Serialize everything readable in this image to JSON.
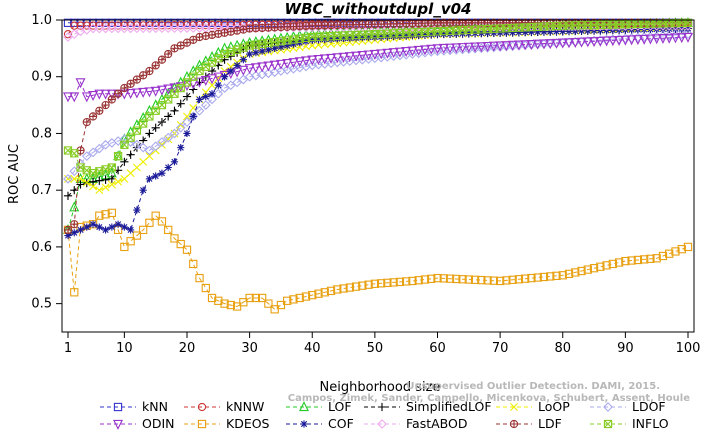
{
  "chart_data": {
    "type": "line",
    "title": "WBC_withoutdupl_v04",
    "xlabel": "Neighborhood size",
    "ylabel": "ROC AUC",
    "xlim": [
      1,
      100
    ],
    "ylim": [
      0.45,
      1.0
    ],
    "x_ticks": [
      1,
      10,
      20,
      30,
      40,
      50,
      60,
      70,
      80,
      90,
      100
    ],
    "y_ticks": [
      0.5,
      0.6,
      0.7,
      0.8,
      0.9,
      1.0
    ],
    "grid": false,
    "legend_position": "bottom",
    "watermark_lines": [
      "Unsupervised Outlier Detection. DAMI, 2015.",
      "Campos, Zimek, Sander, Campello, Micenkova, Schubert, Assent, Houle"
    ],
    "series": [
      {
        "name": "kNN",
        "color": "#3333cc",
        "marker": "square",
        "keypoints": [
          [
            1,
            0.995
          ],
          [
            100,
            0.995
          ]
        ]
      },
      {
        "name": "kNNW",
        "color": "#cc3333",
        "marker": "circle",
        "keypoints": [
          [
            1,
            0.975
          ],
          [
            2,
            0.99
          ],
          [
            100,
            0.995
          ]
        ]
      },
      {
        "name": "LOF",
        "color": "#22cc22",
        "marker": "triangle-up",
        "keypoints": [
          [
            1,
            0.63
          ],
          [
            2,
            0.67
          ],
          [
            3,
            0.72
          ],
          [
            5,
            0.72
          ],
          [
            8,
            0.73
          ],
          [
            10,
            0.79
          ],
          [
            14,
            0.84
          ],
          [
            18,
            0.88
          ],
          [
            22,
            0.92
          ],
          [
            26,
            0.95
          ],
          [
            30,
            0.96
          ],
          [
            40,
            0.975
          ],
          [
            60,
            0.985
          ],
          [
            80,
            0.99
          ],
          [
            100,
            0.995
          ]
        ]
      },
      {
        "name": "SimplifiedLOF",
        "color": "#000000",
        "marker": "plus",
        "keypoints": [
          [
            1,
            0.69
          ],
          [
            3,
            0.71
          ],
          [
            5,
            0.715
          ],
          [
            8,
            0.72
          ],
          [
            10,
            0.75
          ],
          [
            14,
            0.8
          ],
          [
            18,
            0.84
          ],
          [
            22,
            0.89
          ],
          [
            26,
            0.93
          ],
          [
            30,
            0.955
          ],
          [
            40,
            0.965
          ],
          [
            60,
            0.975
          ],
          [
            80,
            0.98
          ],
          [
            100,
            0.985
          ]
        ]
      },
      {
        "name": "LoOP",
        "color": "#eeee00",
        "marker": "x",
        "keypoints": [
          [
            1,
            0.72
          ],
          [
            3,
            0.72
          ],
          [
            6,
            0.7
          ],
          [
            10,
            0.72
          ],
          [
            14,
            0.76
          ],
          [
            18,
            0.8
          ],
          [
            22,
            0.86
          ],
          [
            26,
            0.91
          ],
          [
            30,
            0.94
          ],
          [
            40,
            0.955
          ],
          [
            60,
            0.975
          ],
          [
            80,
            0.98
          ],
          [
            100,
            0.99
          ]
        ]
      },
      {
        "name": "LDOF",
        "color": "#aaaaee",
        "marker": "diamond",
        "keypoints": [
          [
            1,
            0.72
          ],
          [
            4,
            0.76
          ],
          [
            7,
            0.78
          ],
          [
            10,
            0.79
          ],
          [
            14,
            0.77
          ],
          [
            18,
            0.8
          ],
          [
            22,
            0.84
          ],
          [
            26,
            0.88
          ],
          [
            30,
            0.9
          ],
          [
            40,
            0.92
          ],
          [
            60,
            0.945
          ],
          [
            80,
            0.96
          ],
          [
            100,
            0.975
          ]
        ]
      },
      {
        "name": "ODIN",
        "color": "#9933cc",
        "marker": "triangle-down",
        "keypoints": [
          [
            1,
            0.865
          ],
          [
            2,
            0.865
          ],
          [
            3,
            0.89
          ],
          [
            4,
            0.865
          ],
          [
            6,
            0.87
          ],
          [
            10,
            0.87
          ],
          [
            15,
            0.875
          ],
          [
            20,
            0.885
          ],
          [
            25,
            0.9
          ],
          [
            30,
            0.915
          ],
          [
            40,
            0.93
          ],
          [
            60,
            0.95
          ],
          [
            80,
            0.96
          ],
          [
            100,
            0.97
          ]
        ]
      },
      {
        "name": "KDEOS",
        "color": "#e8a010",
        "marker": "square",
        "keypoints": [
          [
            1,
            0.63
          ],
          [
            2,
            0.52
          ],
          [
            3,
            0.635
          ],
          [
            5,
            0.64
          ],
          [
            6,
            0.655
          ],
          [
            8,
            0.66
          ],
          [
            10,
            0.6
          ],
          [
            11,
            0.61
          ],
          [
            13,
            0.63
          ],
          [
            15,
            0.655
          ],
          [
            16,
            0.645
          ],
          [
            18,
            0.615
          ],
          [
            20,
            0.595
          ],
          [
            22,
            0.545
          ],
          [
            24,
            0.51
          ],
          [
            26,
            0.5
          ],
          [
            28,
            0.495
          ],
          [
            30,
            0.51
          ],
          [
            32,
            0.51
          ],
          [
            34,
            0.49
          ],
          [
            36,
            0.505
          ],
          [
            40,
            0.515
          ],
          [
            44,
            0.525
          ],
          [
            50,
            0.535
          ],
          [
            56,
            0.54
          ],
          [
            60,
            0.545
          ],
          [
            70,
            0.54
          ],
          [
            80,
            0.55
          ],
          [
            90,
            0.575
          ],
          [
            95,
            0.58
          ],
          [
            100,
            0.6
          ]
        ]
      },
      {
        "name": "COF",
        "color": "#1a1a99",
        "marker": "star",
        "keypoints": [
          [
            1,
            0.62
          ],
          [
            3,
            0.63
          ],
          [
            5,
            0.64
          ],
          [
            7,
            0.63
          ],
          [
            9,
            0.64
          ],
          [
            11,
            0.63
          ],
          [
            13,
            0.7
          ],
          [
            14,
            0.72
          ],
          [
            16,
            0.73
          ],
          [
            18,
            0.75
          ],
          [
            20,
            0.8
          ],
          [
            22,
            0.86
          ],
          [
            24,
            0.87
          ],
          [
            26,
            0.9
          ],
          [
            30,
            0.94
          ],
          [
            40,
            0.965
          ],
          [
            60,
            0.975
          ],
          [
            80,
            0.98
          ],
          [
            100,
            0.985
          ]
        ]
      },
      {
        "name": "FastABOD",
        "color": "#eeaaee",
        "marker": "diamond",
        "keypoints": [
          [
            1,
            0.97
          ],
          [
            3,
            0.98
          ],
          [
            5,
            0.985
          ],
          [
            100,
            0.99
          ]
        ]
      },
      {
        "name": "LDF",
        "color": "#993333",
        "marker": "circle-plus",
        "keypoints": [
          [
            1,
            0.63
          ],
          [
            2,
            0.64
          ],
          [
            3,
            0.77
          ],
          [
            4,
            0.82
          ],
          [
            6,
            0.84
          ],
          [
            8,
            0.86
          ],
          [
            10,
            0.88
          ],
          [
            14,
            0.91
          ],
          [
            18,
            0.95
          ],
          [
            22,
            0.97
          ],
          [
            30,
            0.985
          ],
          [
            40,
            0.99
          ],
          [
            60,
            0.995
          ],
          [
            100,
            0.995
          ]
        ]
      },
      {
        "name": "INFLO",
        "color": "#88cc22",
        "marker": "square-x",
        "keypoints": [
          [
            1,
            0.77
          ],
          [
            2,
            0.765
          ],
          [
            3,
            0.74
          ],
          [
            5,
            0.73
          ],
          [
            8,
            0.74
          ],
          [
            10,
            0.78
          ],
          [
            14,
            0.83
          ],
          [
            18,
            0.87
          ],
          [
            22,
            0.91
          ],
          [
            26,
            0.94
          ],
          [
            30,
            0.955
          ],
          [
            40,
            0.97
          ],
          [
            60,
            0.98
          ],
          [
            80,
            0.99
          ],
          [
            100,
            0.995
          ]
        ]
      }
    ]
  }
}
